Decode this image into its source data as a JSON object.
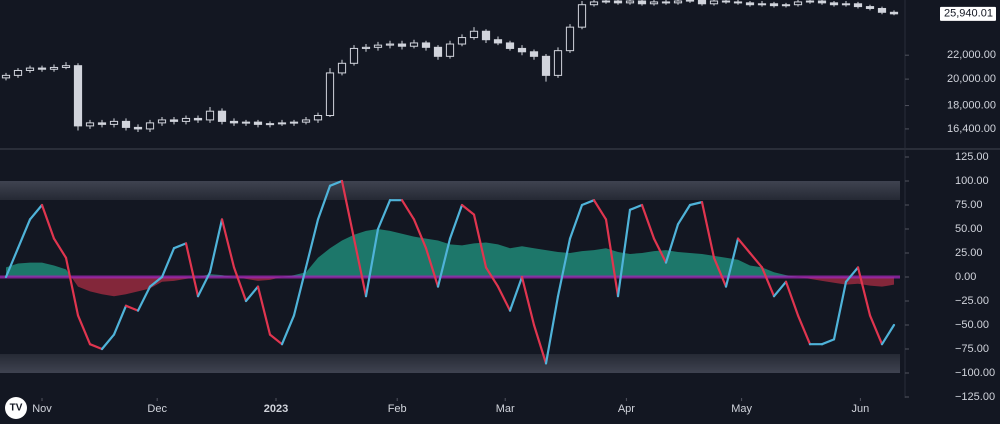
{
  "chart_data": [
    {
      "type": "candlestick",
      "log_scale": true,
      "ylim": [
        15200,
        27410
      ],
      "xlim": [
        0,
        75
      ],
      "color": "#d1d4dc",
      "yticks": [
        {
          "value": 16400,
          "label": "16,400.00"
        },
        {
          "value": 18000,
          "label": "18,000.00"
        },
        {
          "value": 20000,
          "label": "20,000.00"
        },
        {
          "value": 22000,
          "label": "22,000.00"
        }
      ],
      "last_price_label": "25,940.01",
      "open": [
        20100,
        20300,
        20700,
        20900,
        20800,
        20950,
        21100,
        16600,
        16800,
        16700,
        16900,
        16500,
        16400,
        16800,
        17000,
        16900,
        17100,
        17000,
        17600,
        16900,
        16800,
        16850,
        16700,
        16750,
        16800,
        16850,
        17000,
        17300,
        20500,
        21300,
        22600,
        22700,
        22900,
        23000,
        22800,
        23100,
        22700,
        21900,
        23000,
        23600,
        24200,
        23400,
        23100,
        22600,
        22300,
        21900,
        20300,
        22400,
        24600,
        26900,
        27200,
        27300,
        27100,
        27300,
        27000,
        27200,
        27100,
        27300,
        27400,
        27000,
        27300,
        27200,
        27100,
        26900,
        27000,
        26800,
        26900,
        27200,
        27300,
        27100,
        26900,
        27000,
        26700,
        26500,
        26100
      ],
      "high": [
        20500,
        20900,
        21100,
        21100,
        21200,
        21400,
        21300,
        17000,
        17000,
        17100,
        17100,
        16700,
        17000,
        17200,
        17200,
        17300,
        17300,
        17900,
        17800,
        17100,
        17000,
        17000,
        16900,
        17000,
        17000,
        17200,
        17500,
        20900,
        21600,
        22900,
        23000,
        23200,
        23300,
        23300,
        23400,
        23300,
        22900,
        23300,
        23900,
        24600,
        24400,
        23700,
        23300,
        22900,
        22500,
        22100,
        22700,
        24900,
        27300,
        27600,
        27700,
        27600,
        27700,
        27600,
        27500,
        27500,
        27600,
        27800,
        27700,
        27600,
        27600,
        27500,
        27300,
        27300,
        27200,
        27100,
        27500,
        27600,
        27500,
        27300,
        27300,
        27200,
        26900,
        26700,
        26300
      ],
      "low": [
        19900,
        20100,
        20500,
        20600,
        20600,
        20800,
        16300,
        16400,
        16500,
        16500,
        16300,
        16200,
        16200,
        16600,
        16700,
        16700,
        16800,
        16800,
        16700,
        16600,
        16600,
        16500,
        16500,
        16600,
        16600,
        16700,
        16800,
        17200,
        20300,
        21100,
        22300,
        22400,
        22600,
        22500,
        22600,
        22400,
        21600,
        21700,
        22800,
        23400,
        23100,
        22900,
        22400,
        22000,
        21600,
        19800,
        20100,
        22200,
        24400,
        26700,
        27000,
        26900,
        26900,
        26800,
        26800,
        26900,
        26900,
        27100,
        26800,
        26800,
        27000,
        26900,
        26700,
        26700,
        26600,
        26600,
        26700,
        27000,
        26900,
        26700,
        26700,
        26500,
        26300,
        25900,
        25800
      ],
      "close": [
        20300,
        20700,
        20900,
        20800,
        20950,
        21100,
        16600,
        16800,
        16700,
        16900,
        16500,
        16400,
        16800,
        17000,
        16900,
        17100,
        17000,
        17600,
        16900,
        16800,
        16850,
        16700,
        16750,
        16800,
        16850,
        17000,
        17300,
        20500,
        21300,
        22600,
        22700,
        22900,
        23000,
        22800,
        23100,
        22700,
        21900,
        23000,
        23600,
        24200,
        23400,
        23100,
        22600,
        22300,
        21900,
        20300,
        22400,
        24600,
        26900,
        27200,
        27300,
        27100,
        27300,
        27000,
        27200,
        27100,
        27300,
        27400,
        27000,
        27300,
        27200,
        27100,
        26900,
        27000,
        26800,
        26900,
        27200,
        27300,
        27100,
        26900,
        27000,
        26700,
        26500,
        26100,
        25940.01
      ]
    },
    {
      "type": "oscillator",
      "ylim": [
        -125,
        125
      ],
      "xlim": [
        0,
        75
      ],
      "yticks": [
        {
          "value": 125,
          "label": "125.00"
        },
        {
          "value": 100,
          "label": "100.00"
        },
        {
          "value": 75,
          "label": "75.00"
        },
        {
          "value": 50,
          "label": "50.00"
        },
        {
          "value": 25,
          "label": "25.00"
        },
        {
          "value": 0,
          "label": "0.00"
        },
        {
          "value": -25,
          "label": "−25.00"
        },
        {
          "value": -50,
          "label": "−50.00"
        },
        {
          "value": -75,
          "label": "−75.00"
        },
        {
          "value": -100,
          "label": "−100.00"
        },
        {
          "value": -125,
          "label": "−125.00"
        }
      ],
      "xticks": [
        {
          "value": 3.5,
          "label": "Nov"
        },
        {
          "value": 13.1,
          "label": "Dec"
        },
        {
          "value": 23,
          "label": "2023"
        },
        {
          "value": 33.1,
          "label": "Feb"
        },
        {
          "value": 42.1,
          "label": "Mar"
        },
        {
          "value": 52.2,
          "label": "Apr"
        },
        {
          "value": 61.8,
          "label": "May"
        },
        {
          "value": 71.7,
          "label": "Jun"
        }
      ],
      "series": [
        {
          "rising_color": "#4fb3d9",
          "falling_color": "#e0354f",
          "values": [
            0,
            30,
            60,
            75,
            40,
            20,
            -40,
            -70,
            -75,
            -60,
            -30,
            -35,
            -10,
            0,
            30,
            35,
            -20,
            5,
            60,
            10,
            -25,
            -10,
            -60,
            -70,
            -40,
            10,
            60,
            95,
            100,
            40,
            -20,
            50,
            80,
            80,
            60,
            30,
            -10,
            40,
            75,
            65,
            10,
            -10,
            -35,
            0,
            -50,
            -90,
            -20,
            40,
            75,
            80,
            60,
            -20,
            70,
            75,
            40,
            15,
            55,
            75,
            78,
            20,
            -10,
            40,
            25,
            10,
            -20,
            -5,
            -40,
            -70,
            -70,
            -65,
            -5,
            10,
            -40,
            -70,
            -50
          ]
        },
        {
          "positive_color": "#26c6a6",
          "negative_color": "#e0354f",
          "values": [
            10,
            14,
            15,
            15,
            12,
            8,
            -10,
            -15,
            -18,
            -20,
            -18,
            -15,
            -12,
            -5,
            -4,
            -2,
            0,
            3,
            2,
            0,
            -2,
            -4,
            -3,
            0,
            2,
            5,
            20,
            30,
            38,
            44,
            48,
            50,
            48,
            45,
            42,
            40,
            38,
            34,
            33,
            35,
            36,
            34,
            30,
            32,
            30,
            28,
            26,
            25,
            27,
            28,
            30,
            26,
            24,
            25,
            27,
            28,
            26,
            25,
            24,
            22,
            20,
            18,
            12,
            10,
            5,
            2,
            0,
            -2,
            -4,
            -6,
            -8,
            -7,
            -9,
            -10,
            -8
          ]
        }
      ]
    }
  ]
}
